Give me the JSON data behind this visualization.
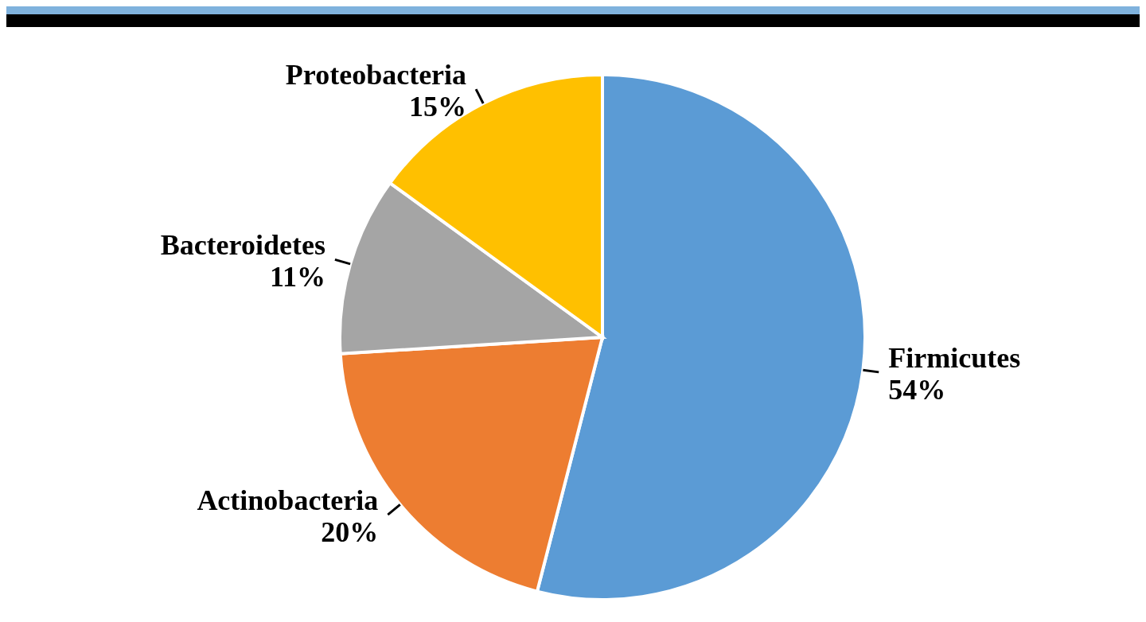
{
  "chart_data": {
    "type": "pie",
    "categories": [
      "Firmicutes",
      "Actinobacteria",
      "Bacteroidetes",
      "Proteobacteria"
    ],
    "values": [
      54,
      20,
      11,
      15
    ],
    "colors": [
      "#5b9bd5",
      "#ed7d31",
      "#a5a5a5",
      "#ffc000"
    ],
    "value_labels": [
      "54%",
      "20%",
      "11%",
      "15%"
    ],
    "legend": false
  }
}
